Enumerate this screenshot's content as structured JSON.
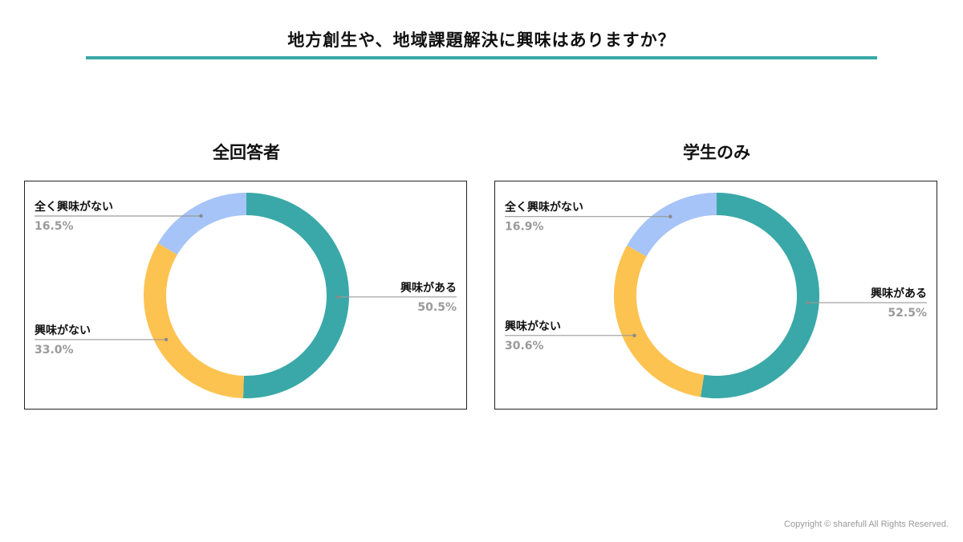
{
  "title": "地方創生や、地域課題解決に興味はありますか？",
  "accent_color": "#3aa8a8",
  "copyright": "Copyright © sharefull All Rights Reserved.",
  "chart_data": [
    {
      "type": "pie",
      "subtype": "donut",
      "title": "全回答者",
      "slices": [
        {
          "label": "興味がある",
          "value": 50.5,
          "display": "50.5%",
          "color": "#3aa8a8"
        },
        {
          "label": "興味がない",
          "value": 33.0,
          "display": "33.0%",
          "color": "#fdc350"
        },
        {
          "label": "全く興味がない",
          "value": 16.5,
          "display": "16.5%",
          "color": "#a6c4f7"
        }
      ]
    },
    {
      "type": "pie",
      "subtype": "donut",
      "title": "学生のみ",
      "slices": [
        {
          "label": "興味がある",
          "value": 52.5,
          "display": "52.5%",
          "color": "#3aa8a8"
        },
        {
          "label": "興味がない",
          "value": 30.6,
          "display": "30.6%",
          "color": "#fdc350"
        },
        {
          "label": "全く興味がない",
          "value": 16.9,
          "display": "16.9%",
          "color": "#a6c4f7"
        }
      ]
    }
  ]
}
